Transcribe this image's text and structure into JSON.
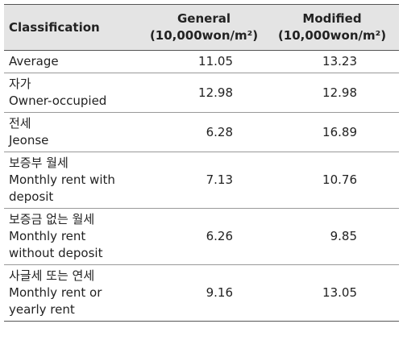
{
  "table": {
    "header": [
      "Classification",
      [
        "General",
        "(10,000won/m²)"
      ],
      [
        "Modified",
        "(10,000won/m²)"
      ]
    ],
    "rows": [
      {
        "label": [
          "Average"
        ],
        "general": "11.05",
        "modified": "13.23"
      },
      {
        "label": [
          "자가",
          "Owner-occupied"
        ],
        "general": "12.98",
        "modified": "12.98"
      },
      {
        "label": [
          "전세",
          "Jeonse"
        ],
        "general": "6.28",
        "modified": "16.89"
      },
      {
        "label": [
          "보증부 월세",
          "Monthly rent with",
          "deposit"
        ],
        "general": "7.13",
        "modified": "10.76"
      },
      {
        "label": [
          "보증금 없는 월세",
          "Monthly rent",
          "without deposit"
        ],
        "general": "6.26",
        "modified": "9.85"
      },
      {
        "label": [
          "사글세 또는 연세",
          "Monthly rent or",
          "yearly rent"
        ],
        "general": "9.16",
        "modified": "13.05"
      }
    ]
  }
}
